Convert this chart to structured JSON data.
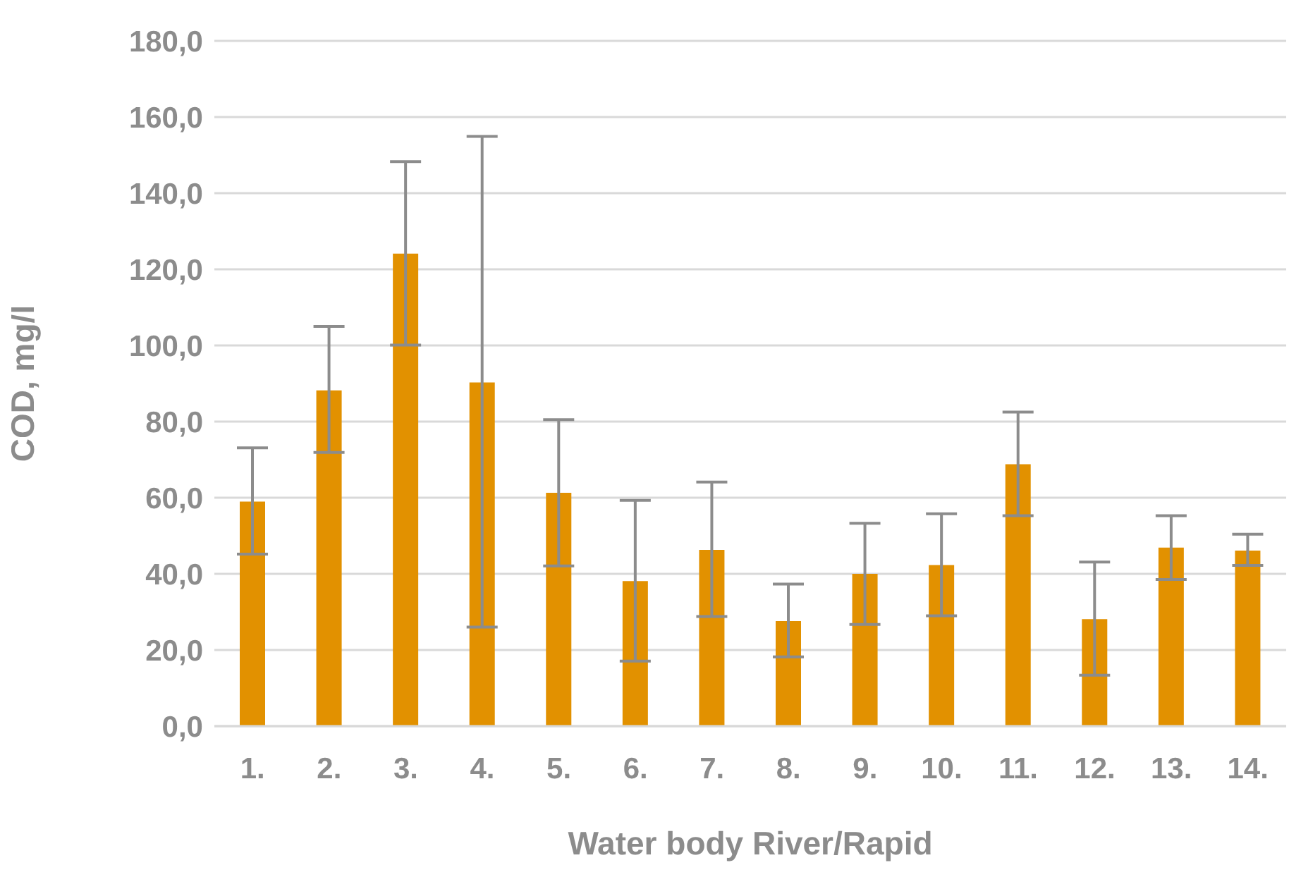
{
  "chart_data": {
    "type": "bar",
    "xlabel": "Water body River/Rapid",
    "ylabel": "COD, mg/l",
    "categories": [
      "1.",
      "2.",
      "3.",
      "4.",
      "5.",
      "6.",
      "7.",
      "8.",
      "9.",
      "10.",
      "11.",
      "12.",
      "13.",
      "14."
    ],
    "values": [
      59.0,
      88.2,
      124.1,
      90.3,
      61.3,
      38.1,
      46.3,
      27.6,
      40.0,
      42.3,
      68.8,
      28.1,
      46.9,
      46.1
    ],
    "errors": [
      [
        45.2,
        73.1
      ],
      [
        71.9,
        105.0
      ],
      [
        100.1,
        148.3
      ],
      [
        26.0,
        154.9
      ],
      [
        42.1,
        80.5
      ],
      [
        17.1,
        59.3
      ],
      [
        28.8,
        64.1
      ],
      [
        18.2,
        37.3
      ],
      [
        26.7,
        53.3
      ],
      [
        29.0,
        55.8
      ],
      [
        55.3,
        82.5
      ],
      [
        13.4,
        43.1
      ],
      [
        38.5,
        55.3
      ],
      [
        42.2,
        50.4
      ]
    ],
    "color": "#e29100",
    "ylim": [
      0,
      180
    ],
    "yticks": [
      {
        "value": 0,
        "label": "0,0"
      },
      {
        "value": 20,
        "label": "20,0"
      },
      {
        "value": 40,
        "label": "40,0"
      },
      {
        "value": 60,
        "label": "60,0"
      },
      {
        "value": 80,
        "label": "80,0"
      },
      {
        "value": 100,
        "label": "100,0"
      },
      {
        "value": 120,
        "label": "120,0"
      },
      {
        "value": 140,
        "label": "140,0"
      },
      {
        "value": 160,
        "label": "160,0"
      },
      {
        "value": 180,
        "label": "180,0"
      }
    ],
    "grid": "y"
  }
}
